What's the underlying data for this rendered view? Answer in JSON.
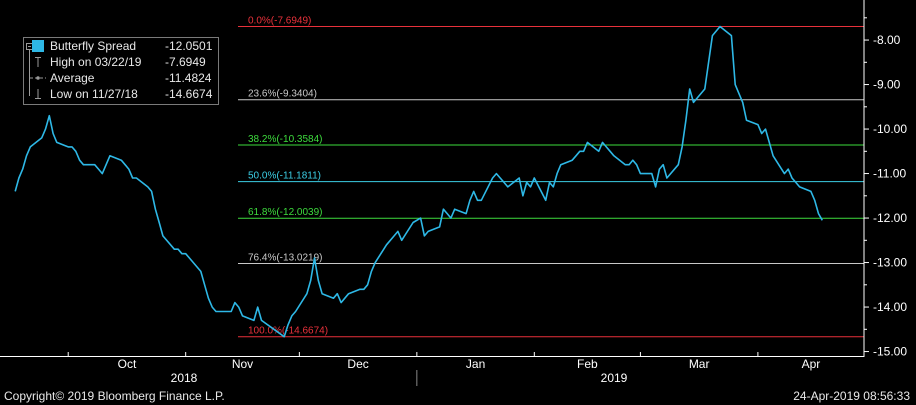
{
  "chart_data": {
    "type": "line",
    "title": "",
    "xlabel": "",
    "ylabel": "",
    "ylim": [
      -15.1,
      -7.1
    ],
    "y_ticks": [
      -8,
      -9,
      -10,
      -11,
      -12,
      -13,
      -14,
      -15
    ],
    "y_tick_labels": [
      "-8.00",
      "-9.00",
      "-10.00",
      "-11.00",
      "-12.00",
      "-13.00",
      "-14.00",
      "-15.00"
    ],
    "x_months": [
      "Oct",
      "Nov",
      "Dec",
      "Jan",
      "Feb",
      "Mar",
      "Apr"
    ],
    "x_years": [
      "2018",
      "2019"
    ],
    "grid": false,
    "line_color": "#2eb8e6",
    "series": [
      {
        "name": "Butterfly Spread",
        "points": [
          [
            "2018-09-17",
            -11.4
          ],
          [
            "2018-09-18",
            -11.1
          ],
          [
            "2018-09-19",
            -10.9
          ],
          [
            "2018-09-20",
            -10.6
          ],
          [
            "2018-09-21",
            -10.4
          ],
          [
            "2018-09-24",
            -10.2
          ],
          [
            "2018-09-25",
            -10.0
          ],
          [
            "2018-09-26",
            -9.7
          ],
          [
            "2018-09-27",
            -10.1
          ],
          [
            "2018-09-28",
            -10.3
          ],
          [
            "2018-10-01",
            -10.4
          ],
          [
            "2018-10-02",
            -10.4
          ],
          [
            "2018-10-03",
            -10.5
          ],
          [
            "2018-10-04",
            -10.7
          ],
          [
            "2018-10-05",
            -10.8
          ],
          [
            "2018-10-08",
            -10.8
          ],
          [
            "2018-10-09",
            -10.9
          ],
          [
            "2018-10-10",
            -11.0
          ],
          [
            "2018-10-11",
            -10.8
          ],
          [
            "2018-10-12",
            -10.6
          ],
          [
            "2018-10-15",
            -10.7
          ],
          [
            "2018-10-16",
            -10.8
          ],
          [
            "2018-10-17",
            -10.9
          ],
          [
            "2018-10-18",
            -11.1
          ],
          [
            "2018-10-19",
            -11.1
          ],
          [
            "2018-10-22",
            -11.3
          ],
          [
            "2018-10-23",
            -11.4
          ],
          [
            "2018-10-24",
            -11.8
          ],
          [
            "2018-10-25",
            -12.1
          ],
          [
            "2018-10-26",
            -12.4
          ],
          [
            "2018-10-29",
            -12.7
          ],
          [
            "2018-10-30",
            -12.7
          ],
          [
            "2018-10-31",
            -12.8
          ],
          [
            "2018-11-01",
            -12.8
          ],
          [
            "2018-11-02",
            -12.9
          ],
          [
            "2018-11-05",
            -13.2
          ],
          [
            "2018-11-06",
            -13.5
          ],
          [
            "2018-11-07",
            -13.8
          ],
          [
            "2018-11-08",
            -14.0
          ],
          [
            "2018-11-09",
            -14.1
          ],
          [
            "2018-11-12",
            -14.1
          ],
          [
            "2018-11-13",
            -14.1
          ],
          [
            "2018-11-14",
            -13.9
          ],
          [
            "2018-11-15",
            -14.0
          ],
          [
            "2018-11-16",
            -14.2
          ],
          [
            "2018-11-19",
            -14.3
          ],
          [
            "2018-11-20",
            -14.0
          ],
          [
            "2018-11-21",
            -14.3
          ],
          [
            "2018-11-27",
            -14.6674
          ],
          [
            "2018-11-28",
            -14.4
          ],
          [
            "2018-11-29",
            -14.2
          ],
          [
            "2018-11-30",
            -14.1
          ],
          [
            "2018-12-03",
            -13.7
          ],
          [
            "2018-12-04",
            -13.4
          ],
          [
            "2018-12-05",
            -12.9
          ],
          [
            "2018-12-06",
            -13.4
          ],
          [
            "2018-12-07",
            -13.7
          ],
          [
            "2018-12-10",
            -13.8
          ],
          [
            "2018-12-11",
            -13.7
          ],
          [
            "2018-12-12",
            -13.9
          ],
          [
            "2018-12-13",
            -13.8
          ],
          [
            "2018-12-14",
            -13.7
          ],
          [
            "2018-12-17",
            -13.6
          ],
          [
            "2018-12-18",
            -13.6
          ],
          [
            "2018-12-19",
            -13.5
          ],
          [
            "2018-12-20",
            -13.2
          ],
          [
            "2018-12-21",
            -13.0
          ],
          [
            "2018-12-24",
            -12.6
          ],
          [
            "2018-12-26",
            -12.4
          ],
          [
            "2018-12-27",
            -12.3
          ],
          [
            "2018-12-28",
            -12.5
          ],
          [
            "2018-12-31",
            -12.1
          ],
          [
            "2019-01-02",
            -12.0
          ],
          [
            "2019-01-03",
            -12.4
          ],
          [
            "2019-01-04",
            -12.3
          ],
          [
            "2019-01-07",
            -12.2
          ],
          [
            "2019-01-08",
            -11.8
          ],
          [
            "2019-01-09",
            -11.9
          ],
          [
            "2019-01-10",
            -12.0
          ],
          [
            "2019-01-11",
            -11.8
          ],
          [
            "2019-01-14",
            -11.9
          ],
          [
            "2019-01-15",
            -11.6
          ],
          [
            "2019-01-16",
            -11.4
          ],
          [
            "2019-01-17",
            -11.6
          ],
          [
            "2019-01-18",
            -11.6
          ],
          [
            "2019-01-21",
            -11.1
          ],
          [
            "2019-01-22",
            -11.0
          ],
          [
            "2019-01-23",
            -11.1
          ],
          [
            "2019-01-24",
            -11.2
          ],
          [
            "2019-01-25",
            -11.3
          ],
          [
            "2019-01-28",
            -11.1
          ],
          [
            "2019-01-29",
            -11.5
          ],
          [
            "2019-01-30",
            -11.2
          ],
          [
            "2019-01-31",
            -11.3
          ],
          [
            "2019-02-01",
            -11.1
          ],
          [
            "2019-02-04",
            -11.6
          ],
          [
            "2019-02-05",
            -11.2
          ],
          [
            "2019-02-06",
            -11.3
          ],
          [
            "2019-02-07",
            -11.0
          ],
          [
            "2019-02-08",
            -10.8
          ],
          [
            "2019-02-11",
            -10.7
          ],
          [
            "2019-02-12",
            -10.6
          ],
          [
            "2019-02-13",
            -10.5
          ],
          [
            "2019-02-14",
            -10.5
          ],
          [
            "2019-02-15",
            -10.3
          ],
          [
            "2019-02-18",
            -10.5
          ],
          [
            "2019-02-19",
            -10.3
          ],
          [
            "2019-02-20",
            -10.4
          ],
          [
            "2019-02-21",
            -10.5
          ],
          [
            "2019-02-22",
            -10.6
          ],
          [
            "2019-02-25",
            -10.8
          ],
          [
            "2019-02-26",
            -10.8
          ],
          [
            "2019-02-27",
            -10.7
          ],
          [
            "2019-02-28",
            -10.8
          ],
          [
            "2019-03-01",
            -11.0
          ],
          [
            "2019-03-04",
            -11.0
          ],
          [
            "2019-03-05",
            -11.3
          ],
          [
            "2019-03-06",
            -10.9
          ],
          [
            "2019-03-07",
            -10.8
          ],
          [
            "2019-03-08",
            -11.1
          ],
          [
            "2019-03-11",
            -10.8
          ],
          [
            "2019-03-12",
            -10.4
          ],
          [
            "2019-03-13",
            -9.8
          ],
          [
            "2019-03-14",
            -9.1
          ],
          [
            "2019-03-15",
            -9.4
          ],
          [
            "2019-03-18",
            -9.1
          ],
          [
            "2019-03-19",
            -8.5
          ],
          [
            "2019-03-20",
            -7.9
          ],
          [
            "2019-03-22",
            -7.6949
          ],
          [
            "2019-03-25",
            -7.9
          ],
          [
            "2019-03-26",
            -9.0
          ],
          [
            "2019-03-27",
            -9.2
          ],
          [
            "2019-03-28",
            -9.4
          ],
          [
            "2019-03-29",
            -9.8
          ],
          [
            "2019-04-01",
            -9.9
          ],
          [
            "2019-04-02",
            -10.1
          ],
          [
            "2019-04-03",
            -10.0
          ],
          [
            "2019-04-04",
            -10.3
          ],
          [
            "2019-04-05",
            -10.6
          ],
          [
            "2019-04-08",
            -11.0
          ],
          [
            "2019-04-09",
            -10.9
          ],
          [
            "2019-04-10",
            -11.1
          ],
          [
            "2019-04-11",
            -11.2
          ],
          [
            "2019-04-12",
            -11.3
          ],
          [
            "2019-04-15",
            -11.4
          ],
          [
            "2019-04-16",
            -11.6
          ],
          [
            "2019-04-17",
            -11.9
          ],
          [
            "2019-04-18",
            -12.0501
          ]
        ]
      }
    ],
    "fibonacci_levels": [
      {
        "label": "0.0%(-7.6949)",
        "value": -7.6949,
        "color": "#e8313b"
      },
      {
        "label": "23.6%(-9.3404)",
        "value": -9.3404,
        "color": "#c8c8c8"
      },
      {
        "label": "38.2%(-10.3584)",
        "value": -10.3584,
        "color": "#3ddc3d"
      },
      {
        "label": "50.0%(-11.1811)",
        "value": -11.1811,
        "color": "#3ccfe6"
      },
      {
        "label": "61.8%(-12.0039)",
        "value": -12.0039,
        "color": "#3ddc3d"
      },
      {
        "label": "76.4%(-13.0219)",
        "value": -13.0219,
        "color": "#c8c8c8"
      },
      {
        "label": "100.0%(-14.6674)",
        "value": -14.6674,
        "color": "#e8313b"
      }
    ],
    "legend": {
      "placement": "top-left",
      "items": [
        {
          "name": "Butterfly Spread",
          "value": "-12.0501",
          "marker": "swatch"
        },
        {
          "name": "High on 03/22/19",
          "value": "-7.6949",
          "marker": "t-top"
        },
        {
          "name": "Average",
          "value": "-11.4824",
          "marker": "dash-dot"
        },
        {
          "name": "Low on 11/27/18",
          "value": "-14.6674",
          "marker": "t-bottom"
        }
      ]
    }
  },
  "footer": {
    "copyright": "Copyright© 2019 Bloomberg Finance L.P.",
    "timestamp": "24-Apr-2019 08:56:33"
  }
}
